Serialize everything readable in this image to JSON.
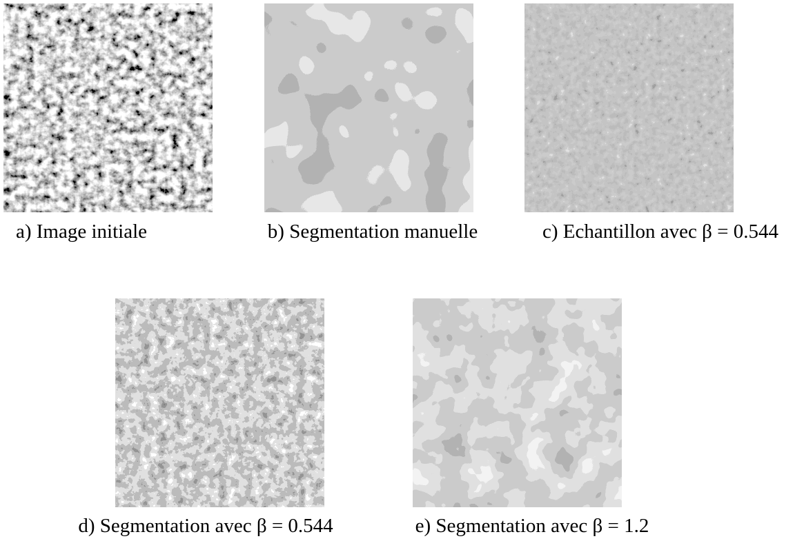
{
  "figure": {
    "panels": [
      {
        "caption": "a) Image initiale"
      },
      {
        "caption": "b) Segmentation manuelle"
      },
      {
        "caption": "c) Echantillon avec β = 0.544"
      },
      {
        "caption": "d) Segmentation avec β = 0.544"
      },
      {
        "caption": "e) Segmentation avec β = 1.2"
      }
    ]
  }
}
